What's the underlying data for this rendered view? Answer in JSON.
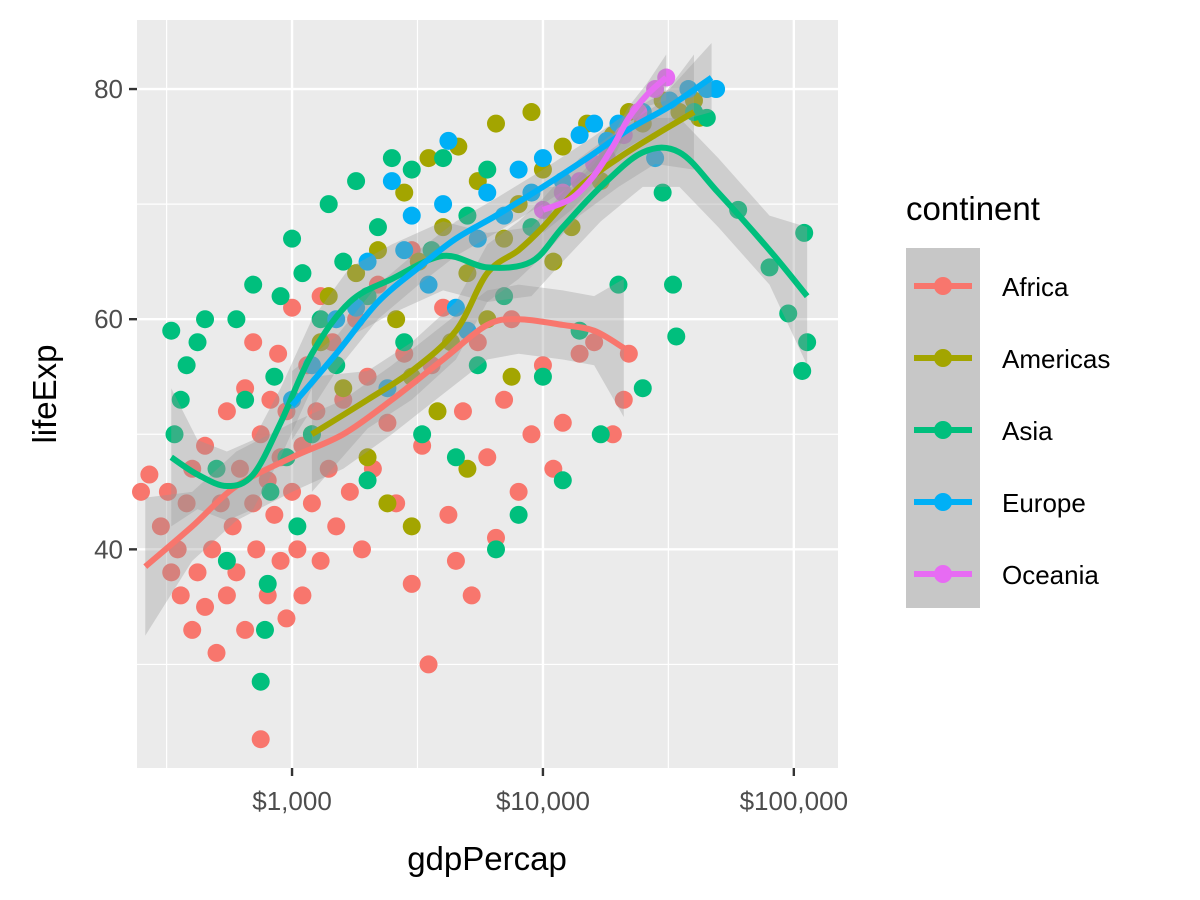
{
  "chart_data": {
    "type": "scatter",
    "title": "",
    "xlabel": "gdpPercap",
    "ylabel": "lifeExp",
    "x_scale": "log10",
    "xlim": [
      241,
      150000
    ],
    "ylim": [
      21,
      86
    ],
    "x_ticks": [
      {
        "value": 1000,
        "label": "$1,000"
      },
      {
        "value": 10000,
        "label": "$10,000"
      },
      {
        "value": 100000,
        "label": "$100,000"
      }
    ],
    "y_ticks": [
      {
        "value": 40,
        "label": "40"
      },
      {
        "value": 60,
        "label": "60"
      },
      {
        "value": 80,
        "label": "80"
      }
    ],
    "grid": true,
    "legend": {
      "title": "continent",
      "position": "right"
    },
    "series": [
      {
        "name": "Africa",
        "color": "#F8766D",
        "points": [
          [
            250,
            45
          ],
          [
            270,
            46.5
          ],
          [
            300,
            42
          ],
          [
            320,
            45
          ],
          [
            330,
            38
          ],
          [
            350,
            40
          ],
          [
            360,
            36
          ],
          [
            380,
            44
          ],
          [
            400,
            33
          ],
          [
            400,
            47
          ],
          [
            420,
            38
          ],
          [
            450,
            35
          ],
          [
            450,
            49
          ],
          [
            480,
            40
          ],
          [
            500,
            31
          ],
          [
            520,
            44
          ],
          [
            550,
            36
          ],
          [
            550,
            52
          ],
          [
            580,
            42
          ],
          [
            600,
            38
          ],
          [
            620,
            47
          ],
          [
            650,
            54
          ],
          [
            650,
            33
          ],
          [
            700,
            44
          ],
          [
            700,
            58
          ],
          [
            720,
            40
          ],
          [
            750,
            50
          ],
          [
            750,
            23.5
          ],
          [
            800,
            36
          ],
          [
            800,
            46
          ],
          [
            820,
            53
          ],
          [
            850,
            43
          ],
          [
            880,
            57
          ],
          [
            900,
            39
          ],
          [
            900,
            48
          ],
          [
            950,
            34
          ],
          [
            950,
            52
          ],
          [
            1000,
            45
          ],
          [
            1000,
            61
          ],
          [
            1050,
            40
          ],
          [
            1100,
            49
          ],
          [
            1100,
            36
          ],
          [
            1150,
            56
          ],
          [
            1200,
            44
          ],
          [
            1250,
            52
          ],
          [
            1300,
            39
          ],
          [
            1300,
            62
          ],
          [
            1400,
            47
          ],
          [
            1450,
            58
          ],
          [
            1500,
            42
          ],
          [
            1600,
            53
          ],
          [
            1700,
            45
          ],
          [
            1800,
            60
          ],
          [
            1900,
            40
          ],
          [
            2000,
            55
          ],
          [
            2100,
            47
          ],
          [
            2200,
            63
          ],
          [
            2400,
            51
          ],
          [
            2600,
            44
          ],
          [
            2800,
            57
          ],
          [
            3000,
            37
          ],
          [
            3000,
            66
          ],
          [
            3300,
            49
          ],
          [
            3500,
            30
          ],
          [
            3600,
            56
          ],
          [
            4000,
            61
          ],
          [
            4200,
            43
          ],
          [
            4500,
            39
          ],
          [
            4800,
            52
          ],
          [
            5200,
            36
          ],
          [
            5500,
            58
          ],
          [
            6000,
            48
          ],
          [
            6500,
            41
          ],
          [
            7000,
            53
          ],
          [
            7500,
            60
          ],
          [
            8000,
            45
          ],
          [
            9000,
            50
          ],
          [
            10000,
            56
          ],
          [
            11000,
            47
          ],
          [
            12000,
            51
          ],
          [
            14000,
            57
          ],
          [
            16000,
            58
          ],
          [
            19000,
            50
          ],
          [
            21000,
            53
          ],
          [
            22000,
            57
          ]
        ],
        "trend": [
          [
            260,
            38.5
          ],
          [
            400,
            42
          ],
          [
            600,
            45.5
          ],
          [
            1000,
            48
          ],
          [
            1600,
            50
          ],
          [
            2500,
            53
          ],
          [
            4000,
            56.5
          ],
          [
            6000,
            59.5
          ],
          [
            8000,
            60
          ],
          [
            12000,
            59.5
          ],
          [
            16000,
            59
          ],
          [
            21000,
            57.5
          ]
        ]
      },
      {
        "name": "Americas",
        "color": "#A3A500",
        "points": [
          [
            1200,
            50
          ],
          [
            1300,
            58
          ],
          [
            1400,
            62
          ],
          [
            1600,
            54
          ],
          [
            1800,
            64
          ],
          [
            2000,
            48
          ],
          [
            2200,
            66
          ],
          [
            2400,
            44
          ],
          [
            2600,
            60
          ],
          [
            2800,
            71
          ],
          [
            3000,
            42
          ],
          [
            3000,
            55
          ],
          [
            3200,
            65
          ],
          [
            3500,
            74
          ],
          [
            3800,
            52
          ],
          [
            4000,
            68
          ],
          [
            4300,
            58
          ],
          [
            4600,
            75
          ],
          [
            5000,
            47
          ],
          [
            5000,
            64
          ],
          [
            5500,
            72
          ],
          [
            6000,
            60
          ],
          [
            6500,
            77
          ],
          [
            7000,
            67
          ],
          [
            7500,
            55
          ],
          [
            8000,
            70
          ],
          [
            9000,
            78
          ],
          [
            10000,
            73
          ],
          [
            11000,
            65
          ],
          [
            12000,
            75
          ],
          [
            13000,
            68
          ],
          [
            15000,
            77
          ],
          [
            17000,
            72
          ],
          [
            19000,
            76
          ],
          [
            22000,
            78
          ],
          [
            25000,
            77
          ],
          [
            30000,
            79
          ],
          [
            35000,
            78
          ],
          [
            40000,
            79
          ],
          [
            42000,
            77.5
          ]
        ],
        "trend": [
          [
            1200,
            50
          ],
          [
            2000,
            53
          ],
          [
            3000,
            55.5
          ],
          [
            4500,
            59
          ],
          [
            6000,
            64
          ],
          [
            8000,
            66
          ],
          [
            10000,
            68
          ],
          [
            14000,
            71.5
          ],
          [
            20000,
            74
          ],
          [
            28000,
            76
          ],
          [
            40000,
            78
          ]
        ]
      },
      {
        "name": "Asia",
        "color": "#00BF7D",
        "points": [
          [
            330,
            59
          ],
          [
            340,
            50
          ],
          [
            360,
            53
          ],
          [
            380,
            56
          ],
          [
            420,
            58
          ],
          [
            450,
            60
          ],
          [
            500,
            47
          ],
          [
            550,
            39
          ],
          [
            600,
            60
          ],
          [
            650,
            53
          ],
          [
            700,
            63
          ],
          [
            750,
            28.5
          ],
          [
            780,
            33
          ],
          [
            800,
            37
          ],
          [
            820,
            45
          ],
          [
            850,
            55
          ],
          [
            900,
            62
          ],
          [
            950,
            48
          ],
          [
            1000,
            67
          ],
          [
            1050,
            42
          ],
          [
            1100,
            64
          ],
          [
            1200,
            50
          ],
          [
            1300,
            60
          ],
          [
            1400,
            70
          ],
          [
            1500,
            56
          ],
          [
            1600,
            65
          ],
          [
            1800,
            72
          ],
          [
            2000,
            46
          ],
          [
            2000,
            62
          ],
          [
            2200,
            68
          ],
          [
            2500,
            74
          ],
          [
            2800,
            58
          ],
          [
            3000,
            73
          ],
          [
            3300,
            50
          ],
          [
            3600,
            66
          ],
          [
            4000,
            74
          ],
          [
            4500,
            48
          ],
          [
            5000,
            69
          ],
          [
            5500,
            56
          ],
          [
            6000,
            73
          ],
          [
            6500,
            40
          ],
          [
            7000,
            62
          ],
          [
            8000,
            43
          ],
          [
            9000,
            68
          ],
          [
            10000,
            55
          ],
          [
            12000,
            46
          ],
          [
            14000,
            59
          ],
          [
            17000,
            50
          ],
          [
            20000,
            63
          ],
          [
            25000,
            54
          ],
          [
            30000,
            71
          ],
          [
            33000,
            63
          ],
          [
            34000,
            58.5
          ],
          [
            40000,
            78
          ],
          [
            45000,
            77.5
          ],
          [
            60000,
            69.5
          ],
          [
            80000,
            64.5
          ],
          [
            95000,
            60.5
          ],
          [
            108000,
            55.5
          ],
          [
            110000,
            67.5
          ],
          [
            113000,
            58
          ]
        ],
        "trend": [
          [
            330,
            48
          ],
          [
            420,
            46.5
          ],
          [
            550,
            45.5
          ],
          [
            700,
            46.5
          ],
          [
            900,
            51
          ],
          [
            1200,
            57
          ],
          [
            1700,
            61.5
          ],
          [
            2500,
            63.5
          ],
          [
            4000,
            65.5
          ],
          [
            6000,
            64.5
          ],
          [
            9000,
            65
          ],
          [
            12000,
            68
          ],
          [
            17000,
            71.5
          ],
          [
            25000,
            74.5
          ],
          [
            35000,
            74.5
          ],
          [
            50000,
            71
          ],
          [
            80000,
            66
          ],
          [
            113000,
            62
          ]
        ]
      },
      {
        "name": "Europe",
        "color": "#00B0F6",
        "points": [
          [
            1000,
            53
          ],
          [
            1200,
            56
          ],
          [
            1500,
            60
          ],
          [
            1800,
            61
          ],
          [
            2000,
            65
          ],
          [
            2400,
            54
          ],
          [
            2500,
            72
          ],
          [
            2800,
            66
          ],
          [
            3000,
            69
          ],
          [
            3500,
            63
          ],
          [
            4000,
            70
          ],
          [
            4200,
            75.5
          ],
          [
            4500,
            61
          ],
          [
            5000,
            59
          ],
          [
            5500,
            67
          ],
          [
            6000,
            71
          ],
          [
            7000,
            69
          ],
          [
            8000,
            73
          ],
          [
            9000,
            71
          ],
          [
            10000,
            74
          ],
          [
            12000,
            72
          ],
          [
            14000,
            76
          ],
          [
            16000,
            77
          ],
          [
            18000,
            75.5
          ],
          [
            20000,
            77
          ],
          [
            25000,
            78
          ],
          [
            28000,
            74
          ],
          [
            32000,
            79
          ],
          [
            38000,
            80
          ],
          [
            45000,
            80
          ],
          [
            49000,
            80
          ]
        ],
        "trend": [
          [
            1000,
            52.5
          ],
          [
            1500,
            57
          ],
          [
            2200,
            61.5
          ],
          [
            3200,
            64.5
          ],
          [
            4500,
            67
          ],
          [
            6500,
            69
          ],
          [
            10000,
            71.5
          ],
          [
            15000,
            74
          ],
          [
            22000,
            76.5
          ],
          [
            32000,
            78.5
          ],
          [
            47000,
            81
          ]
        ]
      },
      {
        "name": "Oceania",
        "color": "#E76BF3",
        "points": [
          [
            10000,
            69.5
          ],
          [
            12000,
            71
          ],
          [
            14000,
            72
          ],
          [
            16000,
            73.5
          ],
          [
            18000,
            74
          ],
          [
            21000,
            76
          ],
          [
            24000,
            78
          ],
          [
            28000,
            80
          ],
          [
            31000,
            81
          ]
        ],
        "trend": [
          [
            10000,
            69.5
          ],
          [
            13000,
            70.5
          ],
          [
            16000,
            72.5
          ],
          [
            19000,
            75
          ],
          [
            22000,
            77.5
          ],
          [
            26000,
            79.5
          ],
          [
            31000,
            81
          ]
        ]
      }
    ]
  }
}
